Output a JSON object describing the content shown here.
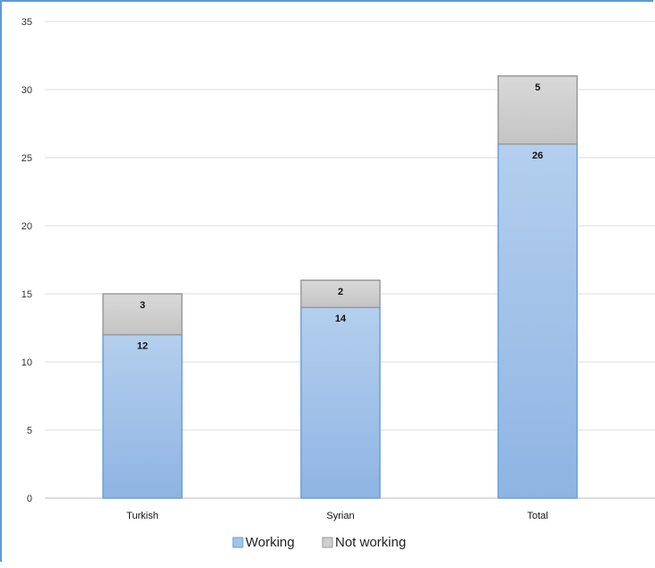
{
  "chart_data": {
    "type": "bar",
    "stacked": true,
    "categories": [
      "Turkish",
      "Syrian",
      "Total"
    ],
    "series": [
      {
        "name": "Working",
        "values": [
          12,
          14,
          26
        ],
        "color": "#a4c2e8",
        "border": "#6a9fd8"
      },
      {
        "name": "Not working",
        "values": [
          3,
          2,
          5
        ],
        "color": "#cfcfcf",
        "border": "#9a9a9a"
      }
    ],
    "ylim": [
      0,
      35
    ],
    "yticks": [
      0,
      5,
      10,
      15,
      20,
      25,
      30,
      35
    ],
    "grid": true,
    "legend": "bottom",
    "title": "",
    "xlabel": "",
    "ylabel": ""
  }
}
